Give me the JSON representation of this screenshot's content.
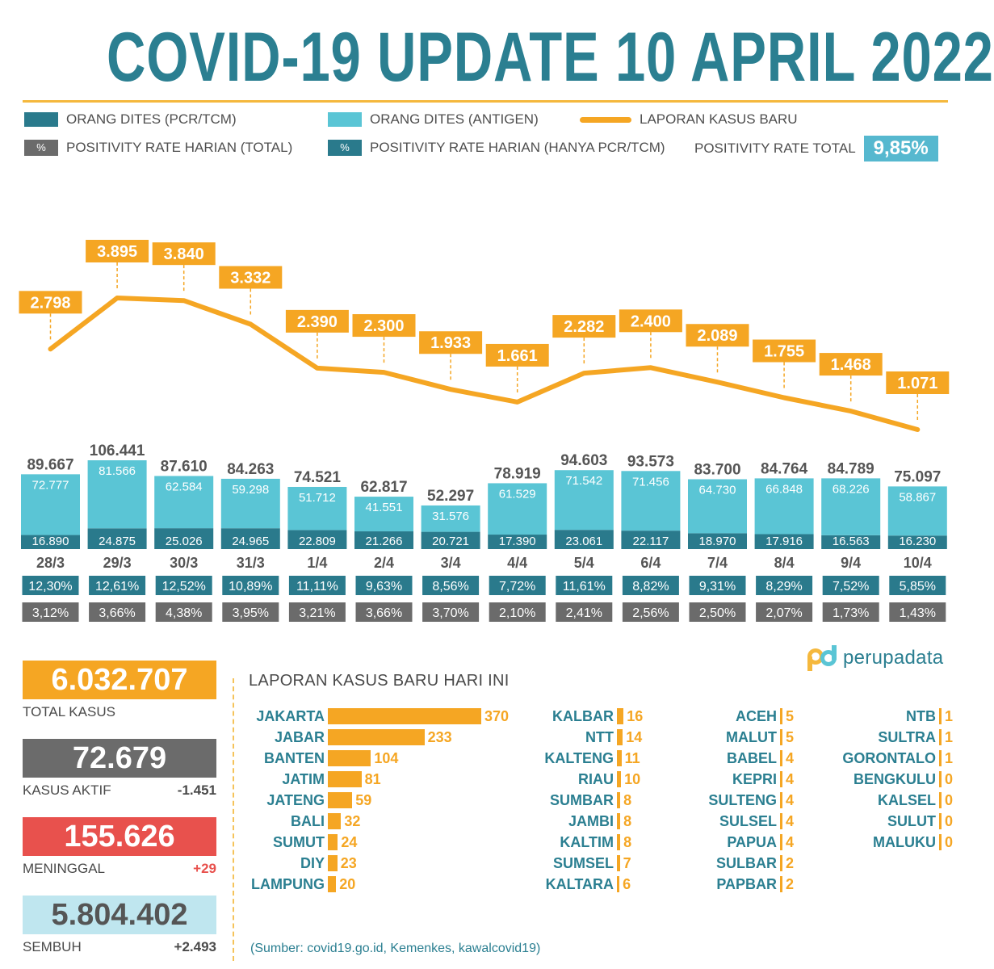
{
  "title": "COVID-19 UPDATE 10 APRIL 2022",
  "legend": {
    "pcr": "ORANG DITES (PCR/TCM)",
    "antigen": "ORANG DITES (ANTIGEN)",
    "cases": "LAPORAN KASUS BARU",
    "pct_symbol": "%",
    "rate_total": "POSITIVITY RATE HARIAN (TOTAL)",
    "rate_pcr": "POSITIVITY RATE HARIAN (HANYA PCR/TCM)",
    "rate_overall_label": "POSITIVITY RATE TOTAL",
    "rate_overall_value": "9,85%"
  },
  "colors": {
    "pcr": "#2a7a8c",
    "antigen": "#5ac5d5",
    "cases": "#f5a623",
    "rate_pcr": "#2a7a8c",
    "rate_total": "#6b6b6b",
    "title": "#2b7f91"
  },
  "chart_data": {
    "type": "bar",
    "categories": [
      "28/3",
      "29/3",
      "30/3",
      "31/3",
      "1/4",
      "2/4",
      "3/4",
      "4/4",
      "5/4",
      "6/4",
      "7/4",
      "8/4",
      "9/4",
      "10/4"
    ],
    "series": [
      {
        "name": "ORANG DITES (PCR/TCM)",
        "values": [
          16890,
          24875,
          25026,
          24965,
          22809,
          21266,
          20721,
          17390,
          23061,
          22117,
          18970,
          17916,
          16563,
          16230
        ],
        "labels": [
          "16.890",
          "24.875",
          "25.026",
          "24.965",
          "22.809",
          "21.266",
          "20.721",
          "17.390",
          "23.061",
          "22.117",
          "18.970",
          "17.916",
          "16.563",
          "16.230"
        ]
      },
      {
        "name": "ORANG DITES (ANTIGEN)",
        "values": [
          72777,
          81566,
          62584,
          59298,
          51712,
          41551,
          31576,
          61529,
          71542,
          71456,
          64730,
          66848,
          68226,
          58867
        ],
        "labels": [
          "72.777",
          "81.566",
          "62.584",
          "59.298",
          "51.712",
          "41.551",
          "31.576",
          "61.529",
          "71.542",
          "71.456",
          "64.730",
          "66.848",
          "68.226",
          "58.867"
        ]
      },
      {
        "name": "LAPORAN KASUS BARU",
        "values": [
          2798,
          3895,
          3840,
          3332,
          2390,
          2300,
          1933,
          1661,
          2282,
          2400,
          2089,
          1755,
          1468,
          1071
        ],
        "labels": [
          "2.798",
          "3.895",
          "3.840",
          "3.332",
          "2.390",
          "2.300",
          "1.933",
          "1.661",
          "2.282",
          "2.400",
          "2.089",
          "1.755",
          "1.468",
          "1.071"
        ]
      }
    ],
    "totals": [
      89667,
      106441,
      87610,
      84263,
      74521,
      62817,
      52297,
      78919,
      94603,
      93573,
      83700,
      84764,
      84789,
      75097
    ],
    "total_labels": [
      "89.667",
      "106.441",
      "87.610",
      "84.263",
      "74.521",
      "62.817",
      "52.297",
      "78.919",
      "94.603",
      "93.573",
      "83.700",
      "84.764",
      "84.789",
      "75.097"
    ],
    "rate_pcr": [
      "12,30%",
      "12,61%",
      "12,52%",
      "10,89%",
      "11,11%",
      "9,63%",
      "8,56%",
      "7,72%",
      "11,61%",
      "8,82%",
      "9,31%",
      "8,29%",
      "7,52%",
      "5,85%"
    ],
    "rate_total": [
      "3,12%",
      "3,66%",
      "4,38%",
      "3,95%",
      "3,21%",
      "3,66%",
      "3,70%",
      "2,10%",
      "2,41%",
      "2,56%",
      "2,50%",
      "2,07%",
      "1,73%",
      "1,43%"
    ]
  },
  "stats": [
    {
      "value": "6.032.707",
      "label": "TOTAL KASUS",
      "change": "",
      "color": "#f5a623",
      "text_color": "#ffffff",
      "change_color": "#4a4a4a"
    },
    {
      "value": "72.679",
      "label": "KASUS AKTIF",
      "change": "-1.451",
      "color": "#6b6b6b",
      "text_color": "#ffffff",
      "change_color": "#4a4a4a"
    },
    {
      "value": "155.626",
      "label": "MENINGGAL",
      "change": "+29",
      "color": "#e8514d",
      "text_color": "#ffffff",
      "change_color": "#e8514d"
    },
    {
      "value": "5.804.402",
      "label": "SEMBUH",
      "change": "+2.493",
      "color": "#bfe6ef",
      "text_color": "#555555",
      "change_color": "#4a4a4a"
    }
  ],
  "provinces": {
    "title": "LAPORAN KASUS BARU HARI INI",
    "columns": [
      [
        {
          "name": "JAKARTA",
          "value": 370
        },
        {
          "name": "JABAR",
          "value": 233
        },
        {
          "name": "BANTEN",
          "value": 104
        },
        {
          "name": "JATIM",
          "value": 81
        },
        {
          "name": "JATENG",
          "value": 59
        },
        {
          "name": "BALI",
          "value": 32
        },
        {
          "name": "SUMUT",
          "value": 24
        },
        {
          "name": "DIY",
          "value": 23
        },
        {
          "name": "LAMPUNG",
          "value": 20
        }
      ],
      [
        {
          "name": "KALBAR",
          "value": 16
        },
        {
          "name": "NTT",
          "value": 14
        },
        {
          "name": "KALTENG",
          "value": 11
        },
        {
          "name": "RIAU",
          "value": 10
        },
        {
          "name": "SUMBAR",
          "value": 8
        },
        {
          "name": "JAMBI",
          "value": 8
        },
        {
          "name": "KALTIM",
          "value": 8
        },
        {
          "name": "SUMSEL",
          "value": 7
        },
        {
          "name": "KALTARA",
          "value": 6
        }
      ],
      [
        {
          "name": "ACEH",
          "value": 5
        },
        {
          "name": "MALUT",
          "value": 5
        },
        {
          "name": "BABEL",
          "value": 4
        },
        {
          "name": "KEPRI",
          "value": 4
        },
        {
          "name": "SULTENG",
          "value": 4
        },
        {
          "name": "SULSEL",
          "value": 4
        },
        {
          "name": "PAPUA",
          "value": 4
        },
        {
          "name": "SULBAR",
          "value": 2
        },
        {
          "name": "PAPBAR",
          "value": 2
        }
      ],
      [
        {
          "name": "NTB",
          "value": 1
        },
        {
          "name": "SULTRA",
          "value": 1
        },
        {
          "name": "GORONTALO",
          "value": 1
        },
        {
          "name": "BENGKULU",
          "value": 0
        },
        {
          "name": "KALSEL",
          "value": 0
        },
        {
          "name": "SULUT",
          "value": 0
        },
        {
          "name": "MALUKU",
          "value": 0
        }
      ]
    ]
  },
  "brand": "perupadata",
  "source": "(Sumber: covid19.go.id, Kemenkes, kawalcovid19)"
}
